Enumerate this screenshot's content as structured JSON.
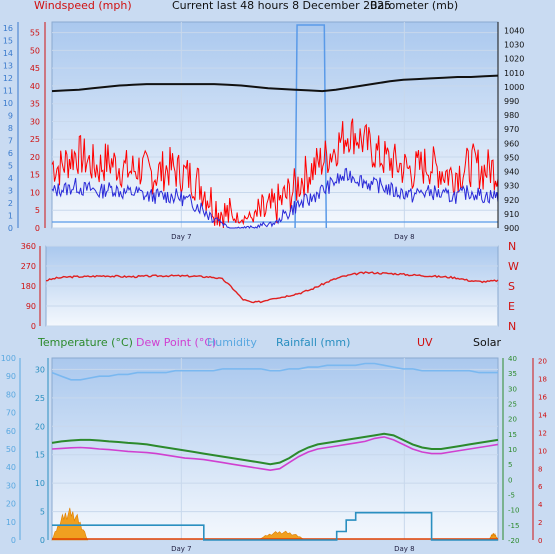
{
  "header": {
    "title": "Current last 48 hours 8 December 2025",
    "left_label": "Windspeed (mph)",
    "right_label": "Barometer (mb)"
  },
  "bottom_header": {
    "temperature": "Temperature (°C)",
    "dewpoint": "Dew Point (°C)",
    "humidity": "Humidity",
    "rainfall": "Rainfall (mm)",
    "uv": "UV",
    "solar": "Solar"
  },
  "colors": {
    "wind_gust": "#ff0000",
    "wind_avg": "#2a2ad8",
    "barometer": "#111111",
    "direction": "#e02020",
    "temperature": "#2c8a2c",
    "dewpoint": "#d040d0",
    "humidity": "#7ab8f0",
    "rainfall": "#2a8fc0",
    "solar": "#f0a020",
    "uv_axis": "#e02020"
  },
  "chart_data": [
    {
      "type": "line",
      "panel": "wind_barometer",
      "x_ticks": [
        "Day 7",
        "Day 8"
      ],
      "left_axis": {
        "label": "Windspeed (mph)",
        "ticks": [
          0,
          5,
          10,
          15,
          20,
          25,
          30,
          35,
          40,
          45,
          50,
          55
        ],
        "ylim": [
          0,
          58
        ]
      },
      "far_left_axis": {
        "label": "Bft",
        "ticks": [
          0,
          1,
          2,
          3,
          4,
          5,
          6,
          7,
          8,
          9,
          10,
          11,
          12,
          13,
          14,
          15,
          16
        ]
      },
      "right_axis": {
        "label": "Barometer (mb)",
        "ticks": [
          900,
          910,
          920,
          930,
          940,
          950,
          960,
          970,
          980,
          990,
          1000,
          1010,
          1020,
          1030,
          1040
        ],
        "ylim": [
          900,
          1046
        ]
      },
      "series": [
        {
          "role": "gust",
          "values": [
            18,
            17,
            19,
            21,
            20,
            18,
            17,
            19,
            18,
            17,
            16,
            17,
            16,
            15,
            16,
            17,
            16,
            15,
            14,
            12,
            9,
            6,
            4,
            3,
            3,
            3,
            3,
            4,
            5,
            7,
            9,
            11,
            14,
            16,
            18,
            20,
            22,
            25,
            27,
            26,
            24,
            22,
            20,
            19,
            18,
            17,
            16,
            17,
            18,
            17,
            16,
            15,
            16,
            17,
            18,
            16,
            17,
            16
          ]
        },
        {
          "role": "average",
          "values": [
            10,
            11,
            11,
            12,
            11,
            11,
            10,
            11,
            11,
            10,
            10,
            10,
            9,
            9,
            9,
            9,
            9,
            8,
            7,
            6,
            4,
            3,
            1,
            0,
            0,
            0,
            0,
            1,
            1,
            2,
            4,
            6,
            7,
            8,
            10,
            11,
            13,
            14,
            15,
            14,
            13,
            12,
            12,
            11,
            10,
            10,
            9,
            10,
            10,
            10,
            9,
            9,
            9,
            10,
            10,
            9,
            9,
            9
          ]
        },
        {
          "role": "barometer",
          "values": [
            997,
            997.5,
            998,
            999,
            1000,
            1001,
            1001.5,
            1002,
            1002,
            1002,
            1002,
            1002,
            1002,
            1001.5,
            1001,
            1000,
            999,
            998.5,
            998,
            997.5,
            997,
            998,
            999.5,
            1001,
            1002.5,
            1004,
            1005,
            1005.5,
            1006,
            1006.5,
            1007,
            1007,
            1007.5,
            1008
          ]
        },
        {
          "role": "solar_bar",
          "values": [
            0,
            0,
            0,
            0,
            0,
            0,
            0,
            0,
            0,
            0,
            0,
            0,
            0,
            0,
            0,
            0,
            0,
            0,
            0,
            0,
            0,
            0,
            0,
            0,
            0,
            0,
            0,
            0,
            0,
            0,
            0,
            0,
            0,
            0,
            0,
            0,
            0,
            0,
            0,
            0,
            0,
            0,
            0,
            0,
            0,
            0,
            0,
            0,
            0,
            0,
            0,
            0,
            0,
            0,
            0,
            0,
            0,
            0
          ]
        }
      ]
    },
    {
      "type": "line",
      "panel": "wind_direction",
      "left_axis": {
        "ticks": [
          0,
          90,
          180,
          270,
          360
        ],
        "ylim": [
          0,
          360
        ]
      },
      "right_axis": {
        "ticks": [
          "N",
          "E",
          "S",
          "W",
          "N"
        ]
      },
      "series": [
        {
          "role": "direction",
          "values": [
            205,
            215,
            220,
            222,
            222,
            224,
            226,
            224,
            222,
            222,
            224,
            225,
            226,
            226,
            225,
            224,
            222,
            220,
            210,
            170,
            120,
            105,
            110,
            125,
            130,
            140,
            150,
            165,
            185,
            205,
            220,
            230,
            238,
            240,
            238,
            236,
            234,
            230,
            228,
            225,
            222,
            220,
            215,
            205,
            200,
            200,
            205
          ]
        }
      ]
    },
    {
      "type": "line",
      "panel": "temperature_rain",
      "x_ticks": [
        "Day 7",
        "Day 8"
      ],
      "far_left_axis": {
        "label": "Humidity",
        "ticks": [
          0,
          10,
          20,
          30,
          40,
          50,
          60,
          70,
          80,
          90,
          100
        ]
      },
      "left_axis": {
        "label": "Rainfall (mm)",
        "ticks": [
          0,
          5,
          10,
          15,
          20,
          25,
          30
        ],
        "ylim": [
          0,
          32
        ]
      },
      "temp_axis": {
        "label": "Temperature (°C)",
        "ticks": [
          -20,
          -15,
          -10,
          -5,
          0,
          5,
          10,
          15,
          20,
          25,
          30,
          35,
          40
        ],
        "ylim": [
          -20,
          40
        ]
      },
      "uv_axis": {
        "label": "UV",
        "ticks": [
          0,
          2,
          4,
          6,
          8,
          10,
          12,
          14,
          16,
          18,
          20
        ]
      },
      "series": [
        {
          "role": "temperature",
          "values": [
            12,
            12.5,
            12.8,
            13,
            13,
            12.8,
            12.5,
            12.3,
            12,
            11.8,
            11.5,
            11,
            10.5,
            10,
            9.5,
            9,
            8.5,
            8,
            7.5,
            7,
            6.5,
            6,
            5.5,
            5,
            5.5,
            7,
            9,
            10.5,
            11.5,
            12,
            12.5,
            13,
            13.5,
            14,
            14.5,
            15,
            14.5,
            13,
            11.5,
            10.5,
            10,
            10,
            10.5,
            11,
            11.5,
            12,
            12.5,
            13
          ]
        },
        {
          "role": "dewpoint",
          "values": [
            10,
            10.2,
            10.4,
            10.5,
            10.3,
            10,
            9.8,
            9.5,
            9.2,
            9,
            8.8,
            8.5,
            8,
            7.5,
            7,
            6.8,
            6.5,
            6,
            5.5,
            5,
            4.5,
            4,
            3.5,
            3,
            3.5,
            5.5,
            7.5,
            9,
            10,
            10.5,
            11,
            11.5,
            12,
            12.5,
            13.5,
            14,
            13,
            11.5,
            10,
            9,
            8.5,
            8.5,
            9,
            9.5,
            10,
            10.5,
            11,
            11.5
          ]
        },
        {
          "role": "humidity",
          "values": [
            92,
            90,
            88,
            88,
            89,
            90,
            90,
            91,
            91,
            92,
            92,
            92,
            92,
            93,
            93,
            93,
            93,
            93,
            94,
            94,
            94,
            94,
            94,
            93,
            93,
            94,
            94,
            95,
            95,
            96,
            96,
            96,
            96,
            97,
            97,
            96,
            95,
            94,
            94,
            93,
            93,
            93,
            93,
            93,
            93,
            92,
            92,
            92
          ]
        },
        {
          "role": "rainfall",
          "values": [
            2.6,
            2.6,
            2.6,
            2.6,
            2.6,
            2.6,
            2.6,
            2.6,
            2.6,
            2.6,
            2.6,
            2.6,
            2.6,
            2.6,
            2.6,
            2.6,
            0,
            0,
            0,
            0,
            0,
            0,
            0,
            0,
            0,
            0,
            0,
            0,
            0,
            0,
            1.5,
            3.5,
            4.8,
            4.8,
            4.8,
            4.8,
            4.8,
            4.8,
            4.8,
            4.8,
            0,
            0,
            0,
            0,
            0,
            0,
            0,
            0
          ]
        }
      ]
    }
  ]
}
